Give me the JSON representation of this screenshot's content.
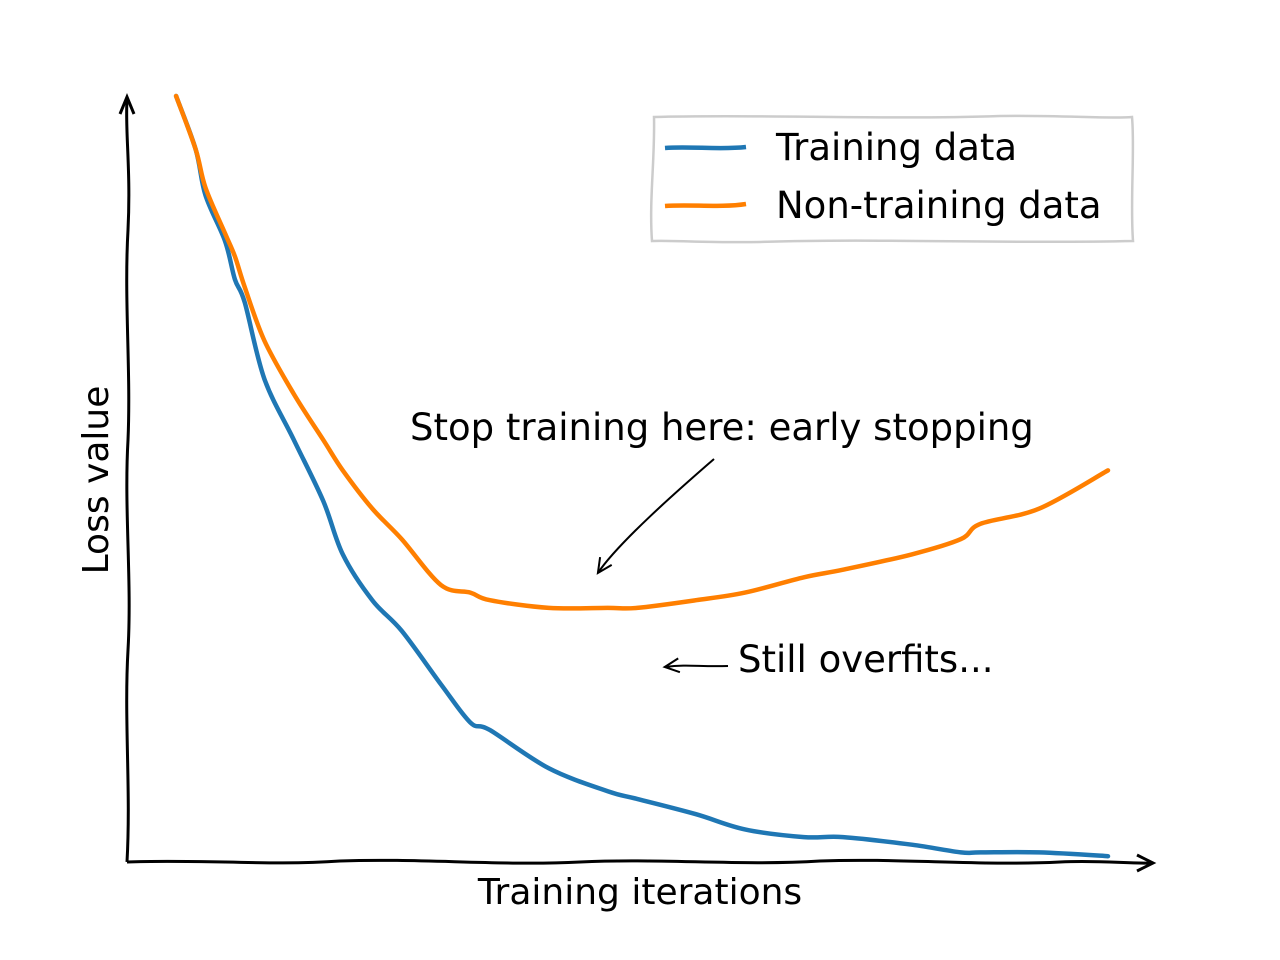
{
  "chart_data": {
    "type": "line",
    "style": "xkcd",
    "title": "",
    "xlabel": "Training iterations",
    "ylabel": "Loss value",
    "xlim": [
      0,
      100
    ],
    "ylim": [
      0,
      100
    ],
    "ticks": false,
    "grid": false,
    "legend": {
      "placement": "top-right",
      "entries": [
        "Training data",
        "Non-training data"
      ]
    },
    "series": [
      {
        "name": "Training data",
        "color": "#1f77b4",
        "x": [
          5,
          7,
          8,
          10,
          11,
          12,
          14,
          17,
          20,
          22,
          25,
          28,
          32,
          35,
          37,
          43,
          49,
          52,
          58,
          63,
          69,
          73,
          80,
          85,
          87,
          93,
          100
        ],
        "y": [
          100,
          93,
          87,
          81,
          76,
          73,
          63,
          55,
          47,
          40,
          34,
          30,
          23,
          18,
          17,
          12,
          9,
          8,
          6,
          4,
          3,
          3,
          2,
          1,
          1,
          1,
          0.5
        ]
      },
      {
        "name": "Non-training data",
        "color": "#ff7f00",
        "x": [
          5,
          7,
          8,
          10,
          11,
          12,
          14,
          17,
          20,
          22,
          25,
          28,
          32,
          35,
          37,
          43,
          49,
          52,
          58,
          63,
          69,
          73,
          80,
          85,
          87,
          93,
          100
        ],
        "y": [
          100,
          93,
          88,
          82,
          79,
          75,
          68,
          61,
          55,
          51,
          46,
          42,
          36,
          35,
          34,
          33,
          33,
          33,
          34,
          35,
          37,
          38,
          40,
          42,
          44,
          46,
          51
        ]
      }
    ],
    "annotations": [
      {
        "text": "Stop training here: early stopping",
        "x": 61,
        "y": 46,
        "arrow_to": {
          "x": 48,
          "y": 36
        }
      },
      {
        "text": "Still overfits...",
        "x": 63,
        "y": 25,
        "arrow_to": {
          "x": 54,
          "y": 25
        }
      }
    ]
  }
}
